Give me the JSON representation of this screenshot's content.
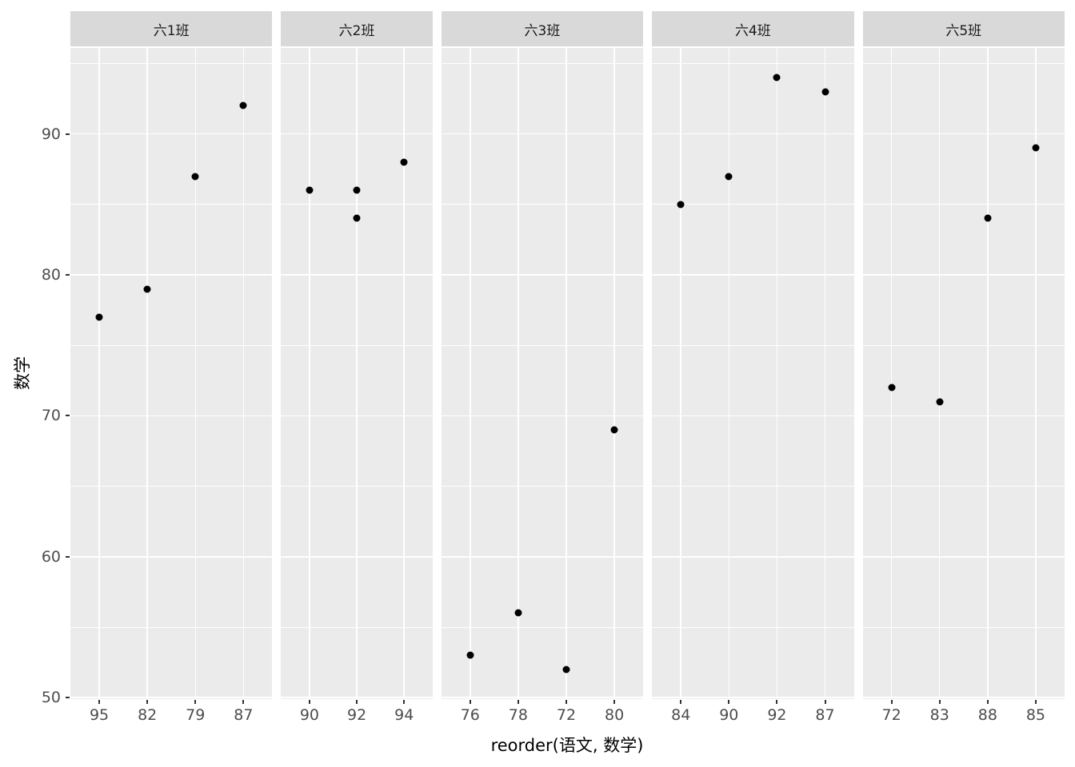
{
  "figure": {
    "x_axis_title": "reorder(语文, 数学)",
    "y_axis_title": "数学"
  },
  "style": {
    "background": "#FFFFFF",
    "panel_bg": "#EBEBEB",
    "strip_bg": "#D9D9D9",
    "gridline": "#FFFFFF",
    "point_color": "#000000",
    "tick_label_color": "#4D4D4D",
    "strip_text_color": "#1A1A1A",
    "axis_title_color": "#000000",
    "tick_mark_color": "#333333"
  },
  "chart_data": {
    "type": "scatter",
    "faceted": true,
    "title": "",
    "xlabel": "reorder(语文, 数学)",
    "ylabel": "数学",
    "y_ticks": [
      50,
      60,
      70,
      80,
      90
    ],
    "y_minor_ticks": [
      55,
      65,
      75,
      85,
      95
    ],
    "ylim": [
      49.9,
      96.1
    ],
    "grid": "major and minor horizontal white lines, major vertical white lines at each category, on gray panels",
    "legend": "none",
    "facets": [
      {
        "label": "六1班",
        "categories": [
          "95",
          "82",
          "79",
          "87"
        ],
        "points": [
          {
            "x": "95",
            "y": 77
          },
          {
            "x": "82",
            "y": 79
          },
          {
            "x": "79",
            "y": 87
          },
          {
            "x": "87",
            "y": 92
          }
        ]
      },
      {
        "label": "六2班",
        "categories": [
          "90",
          "92",
          "94"
        ],
        "points": [
          {
            "x": "90",
            "y": 86
          },
          {
            "x": "92",
            "y": 86
          },
          {
            "x": "92",
            "y": 84
          },
          {
            "x": "94",
            "y": 88
          }
        ]
      },
      {
        "label": "六3班",
        "categories": [
          "76",
          "78",
          "72",
          "80"
        ],
        "points": [
          {
            "x": "76",
            "y": 53
          },
          {
            "x": "78",
            "y": 56
          },
          {
            "x": "72",
            "y": 52
          },
          {
            "x": "80",
            "y": 69
          }
        ]
      },
      {
        "label": "六4班",
        "categories": [
          "84",
          "90",
          "92",
          "87"
        ],
        "points": [
          {
            "x": "84",
            "y": 85
          },
          {
            "x": "90",
            "y": 87
          },
          {
            "x": "92",
            "y": 94
          },
          {
            "x": "87",
            "y": 93
          }
        ]
      },
      {
        "label": "六5班",
        "categories": [
          "72",
          "83",
          "88",
          "85"
        ],
        "points": [
          {
            "x": "72",
            "y": 72
          },
          {
            "x": "83",
            "y": 71
          },
          {
            "x": "88",
            "y": 84
          },
          {
            "x": "85",
            "y": 89
          }
        ]
      }
    ]
  }
}
